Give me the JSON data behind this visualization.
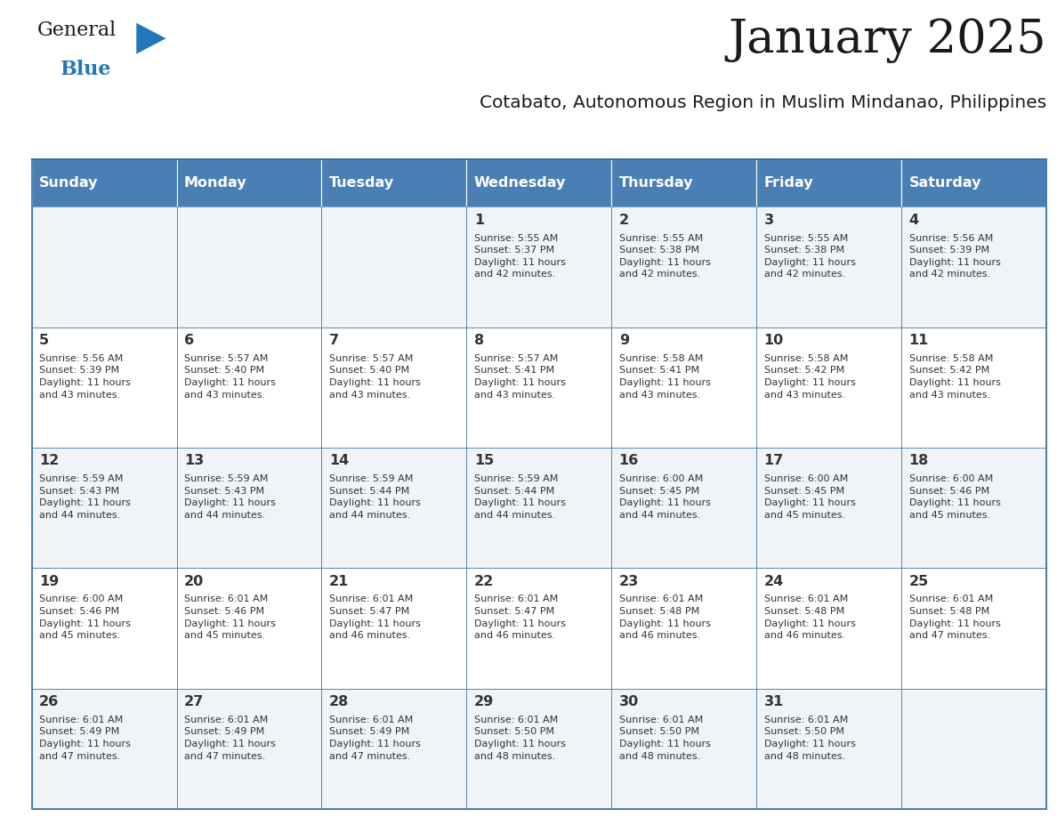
{
  "title": "January 2025",
  "subtitle": "Cotabato, Autonomous Region in Muslim Mindanao, Philippines",
  "header_bg_color": "#4a7fb5",
  "header_text_color": "#ffffff",
  "cell_bg_even": "#f0f4f8",
  "cell_bg_odd": "#ffffff",
  "border_color": "#3a6fa0",
  "day_names": [
    "Sunday",
    "Monday",
    "Tuesday",
    "Wednesday",
    "Thursday",
    "Friday",
    "Saturday"
  ],
  "title_color": "#1a1a1a",
  "subtitle_color": "#1a1a1a",
  "text_color": "#333333",
  "logo_dark_color": "#1a1a1a",
  "logo_blue_color": "#2277bb",
  "weeks": [
    [
      "",
      "",
      "",
      "1\nSunrise: 5:55 AM\nSunset: 5:37 PM\nDaylight: 11 hours\nand 42 minutes.",
      "2\nSunrise: 5:55 AM\nSunset: 5:38 PM\nDaylight: 11 hours\nand 42 minutes.",
      "3\nSunrise: 5:55 AM\nSunset: 5:38 PM\nDaylight: 11 hours\nand 42 minutes.",
      "4\nSunrise: 5:56 AM\nSunset: 5:39 PM\nDaylight: 11 hours\nand 42 minutes."
    ],
    [
      "5\nSunrise: 5:56 AM\nSunset: 5:39 PM\nDaylight: 11 hours\nand 43 minutes.",
      "6\nSunrise: 5:57 AM\nSunset: 5:40 PM\nDaylight: 11 hours\nand 43 minutes.",
      "7\nSunrise: 5:57 AM\nSunset: 5:40 PM\nDaylight: 11 hours\nand 43 minutes.",
      "8\nSunrise: 5:57 AM\nSunset: 5:41 PM\nDaylight: 11 hours\nand 43 minutes.",
      "9\nSunrise: 5:58 AM\nSunset: 5:41 PM\nDaylight: 11 hours\nand 43 minutes.",
      "10\nSunrise: 5:58 AM\nSunset: 5:42 PM\nDaylight: 11 hours\nand 43 minutes.",
      "11\nSunrise: 5:58 AM\nSunset: 5:42 PM\nDaylight: 11 hours\nand 43 minutes."
    ],
    [
      "12\nSunrise: 5:59 AM\nSunset: 5:43 PM\nDaylight: 11 hours\nand 44 minutes.",
      "13\nSunrise: 5:59 AM\nSunset: 5:43 PM\nDaylight: 11 hours\nand 44 minutes.",
      "14\nSunrise: 5:59 AM\nSunset: 5:44 PM\nDaylight: 11 hours\nand 44 minutes.",
      "15\nSunrise: 5:59 AM\nSunset: 5:44 PM\nDaylight: 11 hours\nand 44 minutes.",
      "16\nSunrise: 6:00 AM\nSunset: 5:45 PM\nDaylight: 11 hours\nand 44 minutes.",
      "17\nSunrise: 6:00 AM\nSunset: 5:45 PM\nDaylight: 11 hours\nand 45 minutes.",
      "18\nSunrise: 6:00 AM\nSunset: 5:46 PM\nDaylight: 11 hours\nand 45 minutes."
    ],
    [
      "19\nSunrise: 6:00 AM\nSunset: 5:46 PM\nDaylight: 11 hours\nand 45 minutes.",
      "20\nSunrise: 6:01 AM\nSunset: 5:46 PM\nDaylight: 11 hours\nand 45 minutes.",
      "21\nSunrise: 6:01 AM\nSunset: 5:47 PM\nDaylight: 11 hours\nand 46 minutes.",
      "22\nSunrise: 6:01 AM\nSunset: 5:47 PM\nDaylight: 11 hours\nand 46 minutes.",
      "23\nSunrise: 6:01 AM\nSunset: 5:48 PM\nDaylight: 11 hours\nand 46 minutes.",
      "24\nSunrise: 6:01 AM\nSunset: 5:48 PM\nDaylight: 11 hours\nand 46 minutes.",
      "25\nSunrise: 6:01 AM\nSunset: 5:48 PM\nDaylight: 11 hours\nand 47 minutes."
    ],
    [
      "26\nSunrise: 6:01 AM\nSunset: 5:49 PM\nDaylight: 11 hours\nand 47 minutes.",
      "27\nSunrise: 6:01 AM\nSunset: 5:49 PM\nDaylight: 11 hours\nand 47 minutes.",
      "28\nSunrise: 6:01 AM\nSunset: 5:49 PM\nDaylight: 11 hours\nand 47 minutes.",
      "29\nSunrise: 6:01 AM\nSunset: 5:50 PM\nDaylight: 11 hours\nand 48 minutes.",
      "30\nSunrise: 6:01 AM\nSunset: 5:50 PM\nDaylight: 11 hours\nand 48 minutes.",
      "31\nSunrise: 6:01 AM\nSunset: 5:50 PM\nDaylight: 11 hours\nand 48 minutes.",
      ""
    ]
  ]
}
